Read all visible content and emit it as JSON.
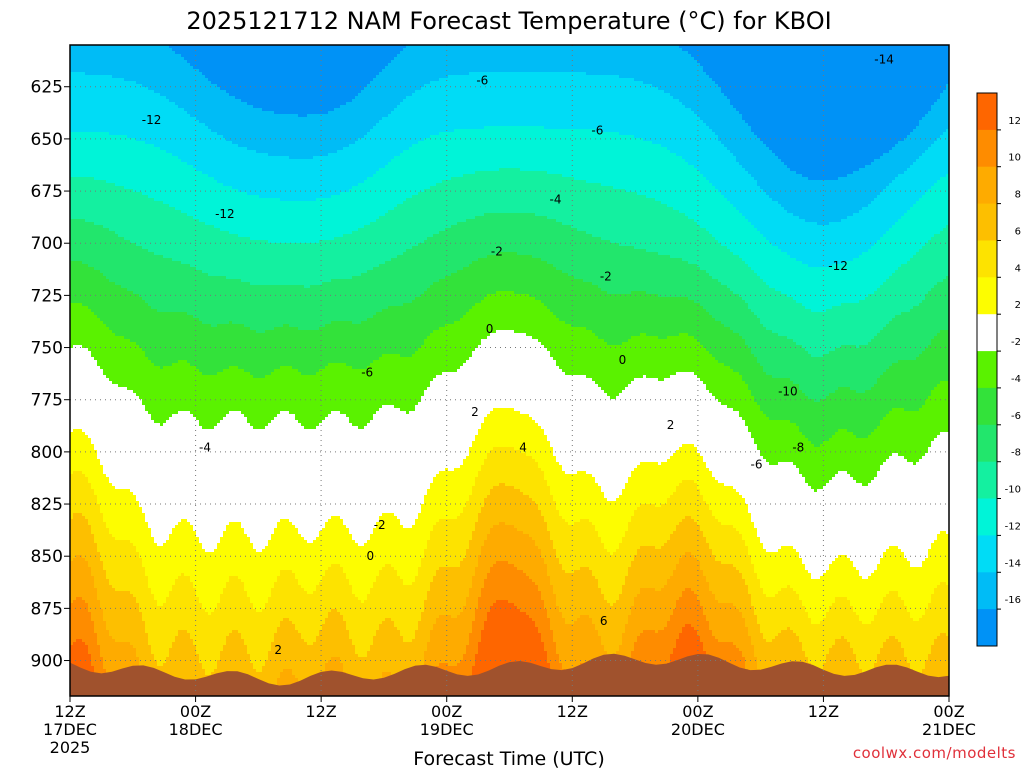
{
  "chart_data": {
    "type": "heatmap",
    "title": "2025121712 NAM Forecast Temperature (°C) for KBOI",
    "xlabel": "Forecast Time (UTC)",
    "ylabel": "",
    "x_ticks": [
      {
        "lines": [
          "12Z",
          "17DEC",
          "2025"
        ]
      },
      {
        "lines": [
          "00Z",
          "18DEC"
        ]
      },
      {
        "lines": [
          "12Z"
        ]
      },
      {
        "lines": [
          "00Z",
          "19DEC"
        ]
      },
      {
        "lines": [
          "12Z"
        ]
      },
      {
        "lines": [
          "00Z",
          "20DEC"
        ]
      },
      {
        "lines": [
          "12Z"
        ]
      },
      {
        "lines": [
          "00Z",
          "21DEC"
        ]
      }
    ],
    "x_hours": [
      0,
      12,
      24,
      36,
      48,
      60,
      72,
      84
    ],
    "xlim": [
      0,
      84
    ],
    "y_ticks": [
      "625",
      "650",
      "675",
      "700",
      "725",
      "750",
      "775",
      "800",
      "825",
      "850",
      "875",
      "900"
    ],
    "y_values": [
      625,
      650,
      675,
      700,
      725,
      750,
      775,
      800,
      825,
      850,
      875,
      900
    ],
    "ylim": [
      605,
      917
    ],
    "grid": true,
    "colorbar": {
      "position": "right",
      "levels": [
        12,
        10,
        8,
        6,
        4,
        2,
        -2,
        -4,
        -6,
        -8,
        -10,
        -12,
        -14,
        -16
      ],
      "bands": [
        {
          "min": 12,
          "max": 14,
          "color": "#fe6600"
        },
        {
          "min": 10,
          "max": 12,
          "color": "#fe8c00"
        },
        {
          "min": 8,
          "max": 10,
          "color": "#feab00"
        },
        {
          "min": 6,
          "max": 8,
          "color": "#fdbf00"
        },
        {
          "min": 4,
          "max": 6,
          "color": "#fde300"
        },
        {
          "min": 2,
          "max": 4,
          "color": "#fdfd00"
        },
        {
          "min": -2,
          "max": 2,
          "color": "#ffffff"
        },
        {
          "min": -4,
          "max": -2,
          "color": "#5af200"
        },
        {
          "min": -6,
          "max": -4,
          "color": "#33e23a"
        },
        {
          "min": -8,
          "max": -6,
          "color": "#22e66c"
        },
        {
          "min": -10,
          "max": -8,
          "color": "#14f0a0"
        },
        {
          "min": -12,
          "max": -10,
          "color": "#00f4d8"
        },
        {
          "min": -14,
          "max": -12,
          "color": "#00dcf6"
        },
        {
          "min": -16,
          "max": -14,
          "color": "#00bcf6"
        },
        {
          "min": -18,
          "max": -16,
          "color": "#0092f6"
        }
      ]
    },
    "contour_labels": [
      {
        "text": "-14",
        "x": 77.8,
        "y": 612
      },
      {
        "text": "-12",
        "x": 7.8,
        "y": 641
      },
      {
        "text": "-12",
        "x": 14.8,
        "y": 686
      },
      {
        "text": "-12",
        "x": 73.4,
        "y": 711
      },
      {
        "text": "-10",
        "x": 68.6,
        "y": 771
      },
      {
        "text": "-8",
        "x": 69.6,
        "y": 798
      },
      {
        "text": "-6",
        "x": 39.4,
        "y": 622
      },
      {
        "text": "-6",
        "x": 50.4,
        "y": 646
      },
      {
        "text": "-6",
        "x": 28.4,
        "y": 762
      },
      {
        "text": "-6",
        "x": 65.6,
        "y": 806
      },
      {
        "text": "-4",
        "x": 46.4,
        "y": 679
      },
      {
        "text": "-4",
        "x": 12.9,
        "y": 798
      },
      {
        "text": "-2",
        "x": 40.8,
        "y": 704
      },
      {
        "text": "-2",
        "x": 51.2,
        "y": 716
      },
      {
        "text": "-2",
        "x": 29.6,
        "y": 835
      },
      {
        "text": "0",
        "x": 40.1,
        "y": 741
      },
      {
        "text": "0",
        "x": 52.8,
        "y": 756
      },
      {
        "text": "0",
        "x": 28.7,
        "y": 850
      },
      {
        "text": "2",
        "x": 57.4,
        "y": 787
      },
      {
        "text": "2",
        "x": 38.7,
        "y": 781
      },
      {
        "text": "2",
        "x": 19.9,
        "y": 895
      },
      {
        "text": "4",
        "x": 43.3,
        "y": 798
      },
      {
        "text": "6",
        "x": 51.0,
        "y": 881
      }
    ]
  },
  "footer": {
    "credit": "coolwx.com/modelts"
  }
}
